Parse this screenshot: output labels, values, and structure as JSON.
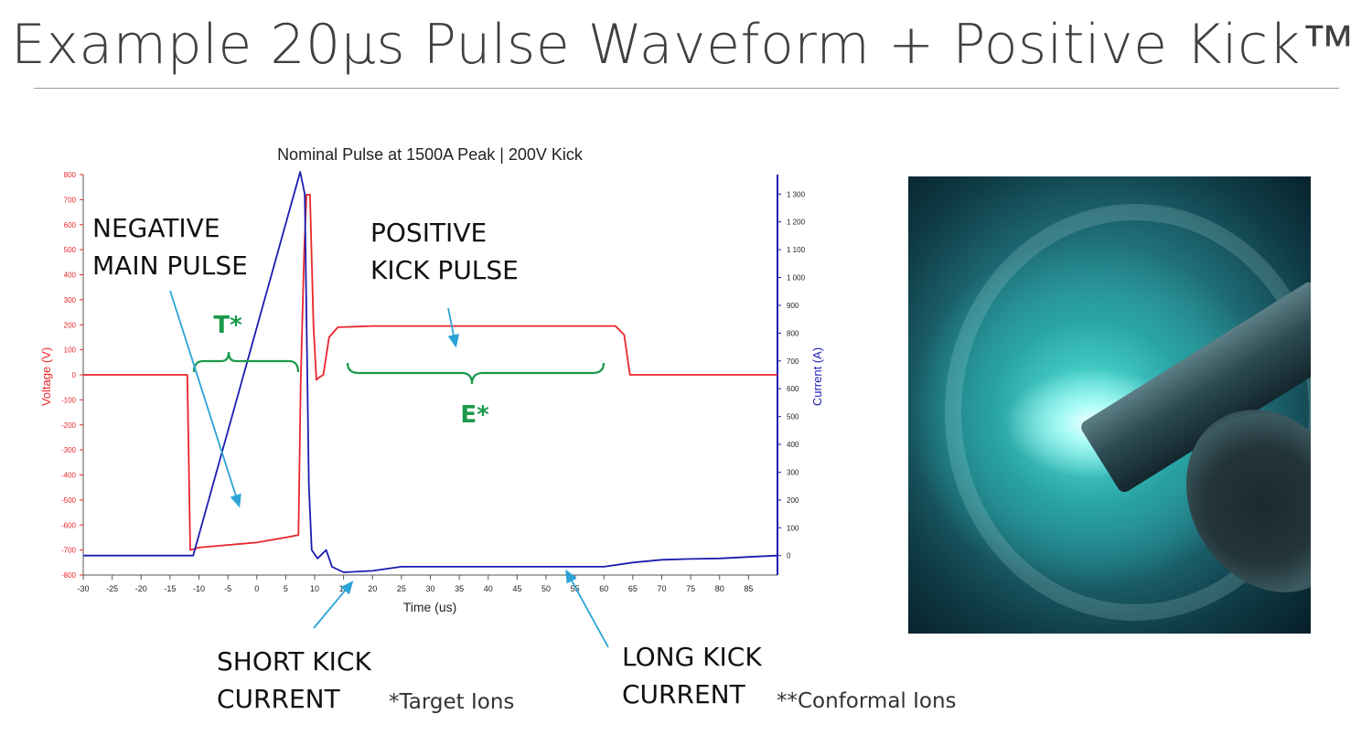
{
  "slide": {
    "title": "Example 20µs Pulse Waveform + Positive Kick™",
    "note_target": "*Target Ions",
    "note_conformal": "**Conformal Ions"
  },
  "photo": {
    "icon": "plasma-discharge-photo"
  },
  "colors": {
    "voltage": "#e8262b",
    "current": "#1c1cb0",
    "annotation": "#1a9a4a",
    "arrow": "#2aa3d6"
  },
  "chart_data": {
    "type": "line",
    "title": "Nominal Pulse at 1500A Peak | 200V Kick",
    "xlabel": "Time (us)",
    "ylabel": "Voltage (V)",
    "y2label": "Current (A)",
    "xlim": [
      -30,
      90
    ],
    "ylim": [
      -800,
      800
    ],
    "y2lim": [
      -70,
      1370
    ],
    "x_ticks": [
      "-30",
      "-25",
      "-20",
      "-15",
      "-10",
      "-5",
      "0",
      "5",
      "10",
      "15",
      "20",
      "25",
      "30",
      "35",
      "40",
      "45",
      "50",
      "55",
      "60",
      "65",
      "70",
      "75",
      "80",
      "85"
    ],
    "y_ticks": [
      "800",
      "700",
      "600",
      "500",
      "400",
      "300",
      "200",
      "100",
      "0",
      "-100",
      "-200",
      "-300",
      "-400",
      "-500",
      "-600",
      "-700",
      "-800"
    ],
    "y2_ticks": [
      "1 300",
      "1 200",
      "1 100",
      "1 000",
      "900",
      "800",
      "700",
      "600",
      "500",
      "400",
      "300",
      "200",
      "100",
      "0"
    ],
    "series": [
      {
        "axis": "left",
        "points": [
          [
            -30,
            0
          ],
          [
            -12,
            0
          ],
          [
            -11.5,
            -700
          ],
          [
            -10,
            -690
          ],
          [
            -5,
            -680
          ],
          [
            0,
            -670
          ],
          [
            5,
            -650
          ],
          [
            7.2,
            -640
          ],
          [
            7.6,
            -20
          ],
          [
            8.2,
            500
          ],
          [
            8.6,
            720
          ],
          [
            9.2,
            720
          ],
          [
            9.8,
            200
          ],
          [
            10.3,
            -20
          ],
          [
            10.8,
            -10
          ],
          [
            11.5,
            0
          ],
          [
            12.5,
            150
          ],
          [
            14,
            190
          ],
          [
            20,
            195
          ],
          [
            40,
            195
          ],
          [
            62,
            195
          ],
          [
            63.5,
            160
          ],
          [
            64.5,
            0
          ],
          [
            90,
            0
          ]
        ]
      },
      {
        "axis": "right",
        "points": [
          [
            -30,
            0
          ],
          [
            -11,
            0
          ],
          [
            7.5,
            1380
          ],
          [
            8.3,
            1300
          ],
          [
            9,
            250
          ],
          [
            9.5,
            20
          ],
          [
            10.5,
            -10
          ],
          [
            12,
            20
          ],
          [
            13,
            -40
          ],
          [
            15,
            -60
          ],
          [
            20,
            -55
          ],
          [
            25,
            -40
          ],
          [
            40,
            -40
          ],
          [
            60,
            -40
          ],
          [
            65,
            -25
          ],
          [
            70,
            -15
          ],
          [
            75,
            -12
          ],
          [
            80,
            -10
          ],
          [
            85,
            -5
          ],
          [
            90,
            0
          ]
        ]
      }
    ],
    "annotations": {
      "negative_main_pulse": [
        "NEGATIVE",
        "MAIN PULSE"
      ],
      "positive_kick_pulse": [
        "POSITIVE",
        "KICK PULSE"
      ],
      "t_label": "T*",
      "e_label": "E*",
      "short_kick_current": [
        "SHORT KICK",
        "CURRENT"
      ],
      "long_kick_current": [
        "LONG KICK",
        "CURRENT"
      ]
    }
  }
}
